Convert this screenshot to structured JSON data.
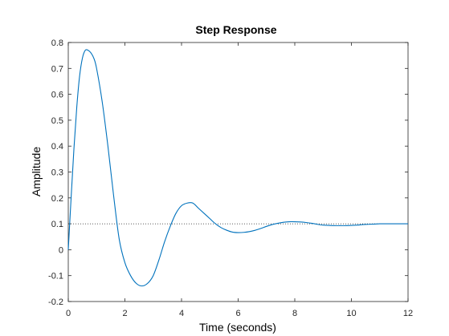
{
  "chart_data": {
    "type": "line",
    "title": "Step Response",
    "xlabel": "Time (seconds)",
    "ylabel": "Amplitude",
    "xlim": [
      0,
      12
    ],
    "ylim": [
      -0.2,
      0.8
    ],
    "xticks": [
      0,
      2,
      4,
      6,
      8,
      10,
      12
    ],
    "xtick_labels": [
      "0",
      "2",
      "4",
      "6",
      "8",
      "10",
      "12"
    ],
    "yticks": [
      -0.2,
      -0.1,
      0,
      0.1,
      0.2,
      0.3,
      0.4,
      0.5,
      0.6,
      0.7,
      0.8
    ],
    "ytick_labels": [
      "-0.2",
      "-0.1",
      "0",
      "0.1",
      "0.2",
      "0.3",
      "0.4",
      "0.5",
      "0.6",
      "0.7",
      "0.8"
    ],
    "grid": false,
    "steady_state": 0.1,
    "series": [
      {
        "color": "#0072BD",
        "x": [
          0,
          0.1,
          0.2,
          0.3,
          0.4,
          0.5,
          0.6,
          0.7,
          0.8,
          0.9,
          1.0,
          1.2,
          1.4,
          1.6,
          1.8,
          2.0,
          2.2,
          2.4,
          2.6,
          2.8,
          3.0,
          3.2,
          3.4,
          3.6,
          3.8,
          4.0,
          4.2,
          4.4,
          4.6,
          4.8,
          5.0,
          5.2,
          5.4,
          5.6,
          5.8,
          6.0,
          6.2,
          6.4,
          6.6,
          6.8,
          7.0,
          7.2,
          7.4,
          7.6,
          7.8,
          8.0,
          8.2,
          8.4,
          8.6,
          8.8,
          9.0,
          9.2,
          9.4,
          9.6,
          9.8,
          10.0,
          10.2,
          10.4,
          10.6,
          10.8,
          11.0,
          11.2,
          11.4,
          11.6,
          11.8,
          12.0
        ],
        "y": [
          0,
          0.2,
          0.39,
          0.55,
          0.67,
          0.74,
          0.77,
          0.77,
          0.76,
          0.74,
          0.7,
          0.57,
          0.4,
          0.21,
          0.04,
          -0.05,
          -0.1,
          -0.13,
          -0.14,
          -0.13,
          -0.1,
          -0.04,
          0.03,
          0.09,
          0.14,
          0.17,
          0.18,
          0.18,
          0.16,
          0.14,
          0.12,
          0.1,
          0.085,
          0.075,
          0.068,
          0.066,
          0.067,
          0.07,
          0.075,
          0.082,
          0.09,
          0.097,
          0.102,
          0.106,
          0.108,
          0.108,
          0.107,
          0.105,
          0.102,
          0.098,
          0.095,
          0.094,
          0.093,
          0.093,
          0.093,
          0.094,
          0.095,
          0.097,
          0.098,
          0.099,
          0.1,
          0.1,
          0.1,
          0.1,
          0.1,
          0.1
        ]
      }
    ]
  }
}
